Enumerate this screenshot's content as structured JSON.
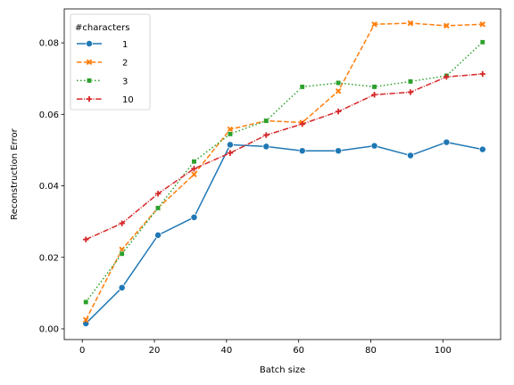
{
  "chart_data": {
    "type": "line",
    "title": "",
    "xlabel": "Batch size",
    "ylabel": "Reconstruction Error",
    "xlim": [
      -5,
      116
    ],
    "ylim": [
      -0.003,
      0.0895
    ],
    "xticks": [
      0,
      20,
      40,
      60,
      80,
      100
    ],
    "xtick_labels": [
      "0",
      "20",
      "40",
      "60",
      "80",
      "100"
    ],
    "yticks": [
      0.0,
      0.02,
      0.04,
      0.06,
      0.08
    ],
    "ytick_labels": [
      "0.00",
      "0.02",
      "0.04",
      "0.06",
      "0.08"
    ],
    "grid": false,
    "legend": {
      "title": "#characters",
      "placement": "top-left"
    },
    "x": [
      1,
      11,
      21,
      31,
      41,
      51,
      61,
      71,
      81,
      91,
      101,
      111
    ],
    "series": [
      {
        "name": "1",
        "color": "#1f77b4",
        "dash": "solid",
        "marker": "circle",
        "values": [
          0.0015,
          0.0115,
          0.0262,
          0.0312,
          0.0515,
          0.051,
          0.0498,
          0.0498,
          0.0512,
          0.0485,
          0.0522,
          0.0502
        ]
      },
      {
        "name": "2",
        "color": "#ff7f0e",
        "dash": "dashed",
        "marker": "x",
        "values": [
          0.0025,
          0.0222,
          0.0338,
          0.0432,
          0.0558,
          0.0582,
          0.0577,
          0.0665,
          0.0852,
          0.0855,
          0.0848,
          0.0852
        ]
      },
      {
        "name": "3",
        "color": "#2ca02c",
        "dash": "dotted",
        "marker": "square",
        "values": [
          0.0075,
          0.021,
          0.0338,
          0.0468,
          0.0545,
          0.0582,
          0.0677,
          0.0688,
          0.0677,
          0.0692,
          0.0708,
          0.0802
        ]
      },
      {
        "name": "10",
        "color": "#d62728",
        "dash": "dashdot",
        "marker": "plus",
        "values": [
          0.025,
          0.0295,
          0.0378,
          0.0448,
          0.0492,
          0.0542,
          0.0573,
          0.0608,
          0.0655,
          0.0662,
          0.0705,
          0.0713
        ]
      }
    ]
  }
}
